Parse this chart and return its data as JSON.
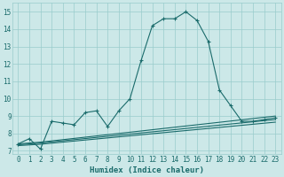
{
  "title": "",
  "xlabel": "Humidex (Indice chaleur)",
  "ylabel": "",
  "bg_color": "#cce8e8",
  "grid_color": "#99cccc",
  "line_color": "#1a6b6b",
  "xlim": [
    -0.5,
    23.5
  ],
  "ylim": [
    6.8,
    15.5
  ],
  "xticks": [
    0,
    1,
    2,
    3,
    4,
    5,
    6,
    7,
    8,
    9,
    10,
    11,
    12,
    13,
    14,
    15,
    16,
    17,
    18,
    19,
    20,
    21,
    22,
    23
  ],
  "yticks": [
    7,
    8,
    9,
    10,
    11,
    12,
    13,
    14,
    15
  ],
  "series": [
    {
      "x": [
        0,
        1,
        2,
        3,
        4,
        5,
        6,
        7,
        8,
        9,
        10,
        11,
        12,
        13,
        14,
        15,
        16,
        17,
        18,
        19,
        20,
        21,
        22,
        23
      ],
      "y": [
        7.4,
        7.7,
        7.1,
        8.7,
        8.6,
        8.5,
        9.2,
        9.3,
        8.4,
        9.3,
        10.0,
        12.2,
        14.2,
        14.6,
        14.6,
        15.0,
        14.5,
        13.3,
        10.5,
        9.6,
        8.7,
        8.7,
        8.8,
        8.9
      ],
      "marker": true
    },
    {
      "x": [
        0,
        2,
        23
      ],
      "y": [
        7.4,
        7.5,
        9.0
      ],
      "marker": false
    },
    {
      "x": [
        0,
        2,
        23
      ],
      "y": [
        7.35,
        7.45,
        8.8
      ],
      "marker": false
    },
    {
      "x": [
        0,
        2,
        23
      ],
      "y": [
        7.3,
        7.38,
        8.65
      ],
      "marker": false
    }
  ],
  "marker_size": 2.5,
  "line_width": 0.8,
  "font_color": "#1a6b6b",
  "xlabel_fontsize": 6.5,
  "tick_fontsize": 5.5
}
